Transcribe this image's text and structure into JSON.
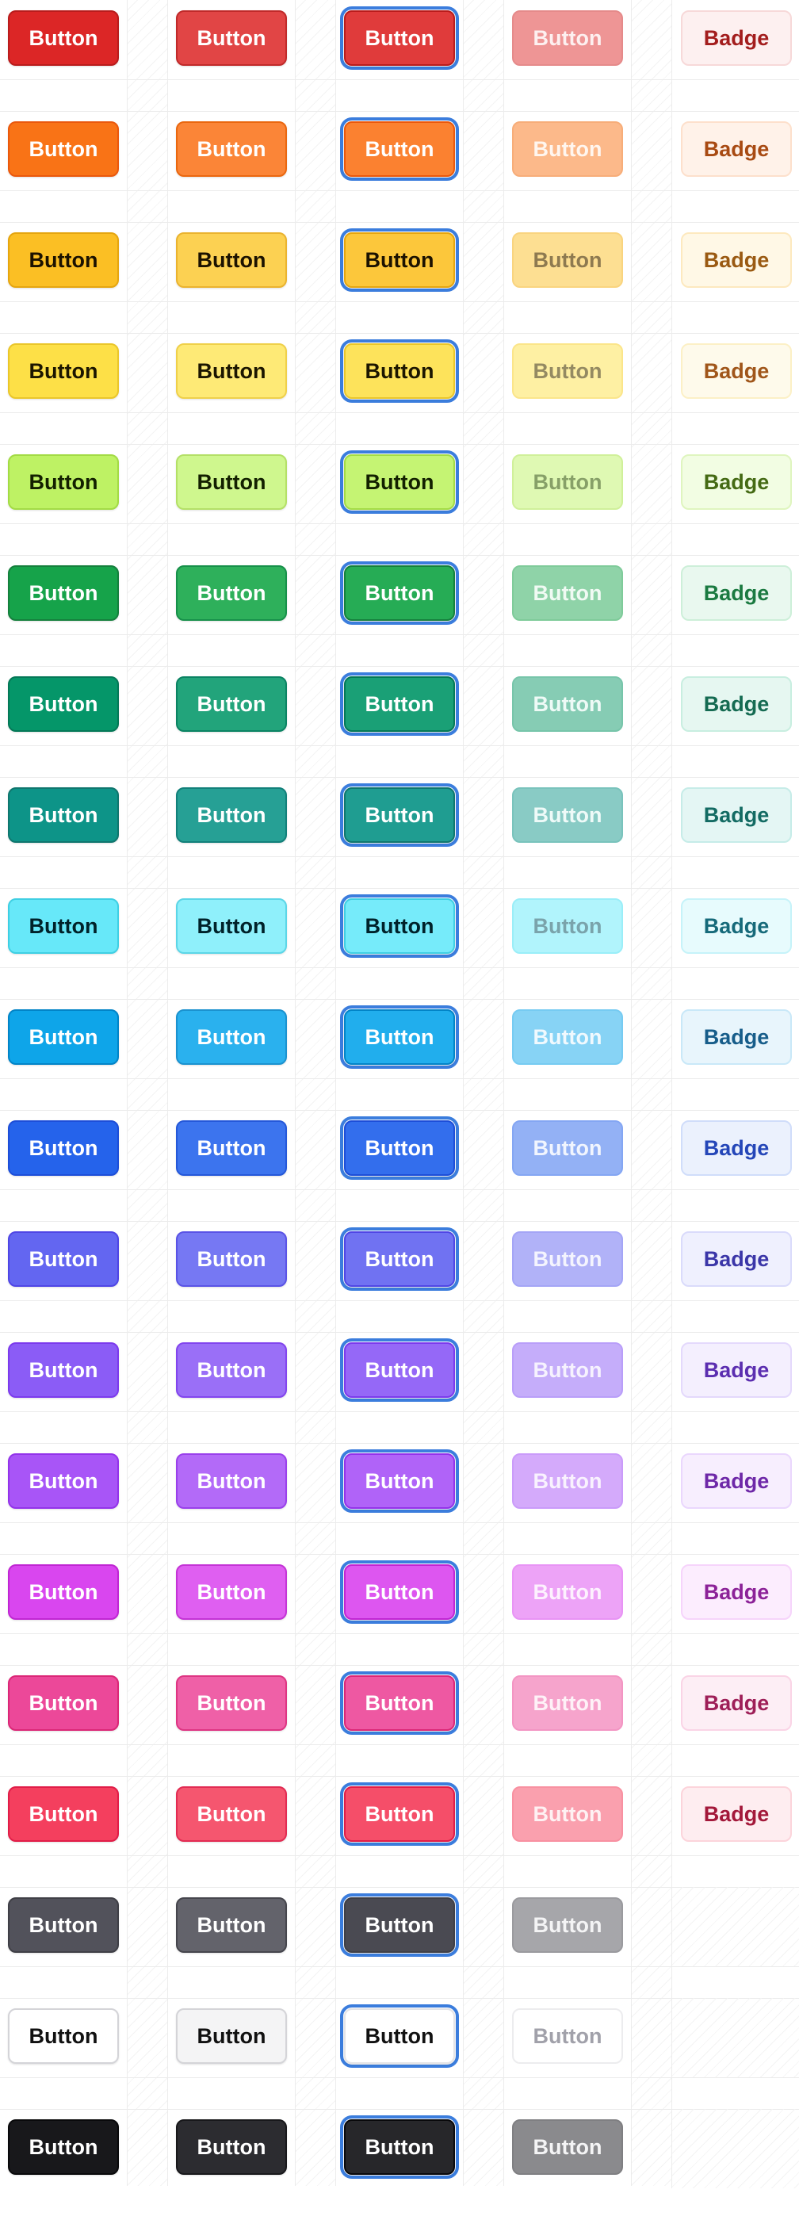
{
  "button_label": "Button",
  "badge_label": "Badge",
  "focus_ring_color": "#3b7ddd",
  "rows": [
    {
      "name": "red",
      "solid": {
        "bg": "#dc2626",
        "fg": "#ffffff",
        "border": "#b91c1c"
      },
      "hover": {
        "bg": "#e14545",
        "fg": "#ffffff",
        "border": "#c02a2a"
      },
      "focus": {
        "bg": "#e03b3b",
        "fg": "#ffffff",
        "border": "#b91c1c"
      },
      "disabled": {
        "bg": "#ee9595",
        "fg": "#fdf0f0",
        "border": "#e58a8a"
      },
      "badge": {
        "bg": "#fdf0f0",
        "fg": "#a31d1d",
        "border": "#f7d9d9"
      }
    },
    {
      "name": "orange",
      "solid": {
        "bg": "#f97316",
        "fg": "#ffffff",
        "border": "#ea580c"
      },
      "hover": {
        "bg": "#fb8537",
        "fg": "#ffffff",
        "border": "#ea670f"
      },
      "focus": {
        "bg": "#fb8130",
        "fg": "#ffffff",
        "border": "#ea580c"
      },
      "disabled": {
        "bg": "#fcb98a",
        "fg": "#fff6ef",
        "border": "#f7ad79"
      },
      "badge": {
        "bg": "#fff2e9",
        "fg": "#a84a12",
        "border": "#fde0cc"
      }
    },
    {
      "name": "amber",
      "solid": {
        "bg": "#fbbf24",
        "fg": "#1c1200",
        "border": "#e5a50f"
      },
      "hover": {
        "bg": "#fcd152",
        "fg": "#1c1200",
        "border": "#eab32f"
      },
      "focus": {
        "bg": "#fcc73b",
        "fg": "#1c1200",
        "border": "#e5a50f"
      },
      "disabled": {
        "bg": "#fddf92",
        "fg": "#8e7a50",
        "border": "#f9d47f"
      },
      "badge": {
        "bg": "#fff8e6",
        "fg": "#9a5a12",
        "border": "#fde9bf"
      }
    },
    {
      "name": "yellow",
      "solid": {
        "bg": "#fde047",
        "fg": "#1c1600",
        "border": "#eac62a"
      },
      "hover": {
        "bg": "#feea76",
        "fg": "#1c1600",
        "border": "#efd04a"
      },
      "focus": {
        "bg": "#fde35b",
        "fg": "#1c1600",
        "border": "#eac62a"
      },
      "disabled": {
        "bg": "#fef0a3",
        "fg": "#948a62",
        "border": "#fbe58a"
      },
      "badge": {
        "bg": "#fefaeb",
        "fg": "#a0561a",
        "border": "#fcf0c6"
      }
    },
    {
      "name": "lime",
      "solid": {
        "bg": "#bef264",
        "fg": "#132000",
        "border": "#a3db45"
      },
      "hover": {
        "bg": "#cff78e",
        "fg": "#132000",
        "border": "#b4e067"
      },
      "focus": {
        "bg": "#c5f473",
        "fg": "#132000",
        "border": "#a3db45"
      },
      "disabled": {
        "bg": "#dff9b3",
        "fg": "#87a068",
        "border": "#d0f09a"
      },
      "badge": {
        "bg": "#f2fde3",
        "fg": "#456a14",
        "border": "#dff5bf"
      }
    },
    {
      "name": "green",
      "solid": {
        "bg": "#16a34a",
        "fg": "#ffffff",
        "border": "#15803d"
      },
      "hover": {
        "bg": "#2eb05b",
        "fg": "#ffffff",
        "border": "#17904a"
      },
      "focus": {
        "bg": "#26ac55",
        "fg": "#ffffff",
        "border": "#15803d"
      },
      "disabled": {
        "bg": "#8fd3a8",
        "fg": "#f0faf3",
        "border": "#7fcb9a"
      },
      "badge": {
        "bg": "#e9f8ef",
        "fg": "#1b7a41",
        "border": "#cdefd9"
      }
    },
    {
      "name": "emerald",
      "solid": {
        "bg": "#059669",
        "fg": "#ffffff",
        "border": "#047857"
      },
      "hover": {
        "bg": "#22a47b",
        "fg": "#ffffff",
        "border": "#0b8363"
      },
      "focus": {
        "bg": "#1aa076",
        "fg": "#ffffff",
        "border": "#047857"
      },
      "disabled": {
        "bg": "#86ccb4",
        "fg": "#eefaf6",
        "border": "#77c5aa"
      },
      "badge": {
        "bg": "#e6f7f1",
        "fg": "#156b52",
        "border": "#c8eee0"
      }
    },
    {
      "name": "teal",
      "solid": {
        "bg": "#0d9488",
        "fg": "#ffffff",
        "border": "#0f766e"
      },
      "hover": {
        "bg": "#26a095",
        "fg": "#ffffff",
        "border": "#12807a"
      },
      "focus": {
        "bg": "#1f9d91",
        "fg": "#ffffff",
        "border": "#0f766e"
      },
      "disabled": {
        "bg": "#89cbc5",
        "fg": "#eefaf8",
        "border": "#79c3bc"
      },
      "badge": {
        "bg": "#e4f6f4",
        "fg": "#136b63",
        "border": "#c6ece8"
      }
    },
    {
      "name": "cyan",
      "solid": {
        "bg": "#67e8f9",
        "fg": "#00222a",
        "border": "#3fcfe3"
      },
      "hover": {
        "bg": "#8ff0fb",
        "fg": "#00222a",
        "border": "#5cd6e7"
      },
      "focus": {
        "bg": "#76ebfa",
        "fg": "#00222a",
        "border": "#3fcfe3"
      },
      "disabled": {
        "bg": "#b1f4fc",
        "fg": "#7aa3ab",
        "border": "#9aeef8"
      },
      "badge": {
        "bg": "#e7fbfd",
        "fg": "#166a7a",
        "border": "#c6f3f9"
      }
    },
    {
      "name": "sky",
      "solid": {
        "bg": "#0ea5e9",
        "fg": "#ffffff",
        "border": "#0284c7"
      },
      "hover": {
        "bg": "#2ab1ee",
        "fg": "#ffffff",
        "border": "#1b92cf"
      },
      "focus": {
        "bg": "#21aeed",
        "fg": "#ffffff",
        "border": "#0284c7"
      },
      "disabled": {
        "bg": "#87d3f5",
        "fg": "#f0f9fe",
        "border": "#76cbf2"
      },
      "badge": {
        "bg": "#e8f5fc",
        "fg": "#175d8a",
        "border": "#c9e8f8"
      }
    },
    {
      "name": "blue",
      "solid": {
        "bg": "#2563eb",
        "fg": "#ffffff",
        "border": "#1d4ed8"
      },
      "hover": {
        "bg": "#3c74ee",
        "fg": "#ffffff",
        "border": "#2558d9"
      },
      "focus": {
        "bg": "#336eed",
        "fg": "#ffffff",
        "border": "#1d4ed8"
      },
      "disabled": {
        "bg": "#93b1f5",
        "fg": "#f1f5fe",
        "border": "#84a6f3"
      },
      "badge": {
        "bg": "#ebf1fd",
        "fg": "#2446b8",
        "border": "#d0ddfa"
      }
    },
    {
      "name": "indigo",
      "solid": {
        "bg": "#6366f1",
        "fg": "#ffffff",
        "border": "#4f46e5"
      },
      "hover": {
        "bg": "#7678f3",
        "fg": "#ffffff",
        "border": "#5a53e6"
      },
      "focus": {
        "bg": "#7072f2",
        "fg": "#ffffff",
        "border": "#4f46e5"
      },
      "disabled": {
        "bg": "#b1b2f8",
        "fg": "#f4f4fe",
        "border": "#a4a5f6"
      },
      "badge": {
        "bg": "#eff0fe",
        "fg": "#3b36a8",
        "border": "#dadbfb"
      }
    },
    {
      "name": "violet",
      "solid": {
        "bg": "#8b5cf6",
        "fg": "#ffffff",
        "border": "#7c3aed"
      },
      "hover": {
        "bg": "#9a6ff7",
        "fg": "#ffffff",
        "border": "#8245ee"
      },
      "focus": {
        "bg": "#9568f7",
        "fg": "#ffffff",
        "border": "#7c3aed"
      },
      "disabled": {
        "bg": "#c5adfa",
        "fg": "#f6f2fe",
        "border": "#b99ef9"
      },
      "badge": {
        "bg": "#f4effe",
        "fg": "#5b2eb0",
        "border": "#e4d9fc"
      }
    },
    {
      "name": "purple",
      "solid": {
        "bg": "#a855f7",
        "fg": "#ffffff",
        "border": "#9333ea"
      },
      "hover": {
        "bg": "#b36af8",
        "fg": "#ffffff",
        "border": "#9a40eb"
      },
      "focus": {
        "bg": "#b063f8",
        "fg": "#ffffff",
        "border": "#9333ea"
      },
      "disabled": {
        "bg": "#d4aafb",
        "fg": "#f9f2fe",
        "border": "#ca9bfa"
      },
      "badge": {
        "bg": "#f7eefe",
        "fg": "#6e28a8",
        "border": "#ead7fd"
      }
    },
    {
      "name": "fuchsia",
      "solid": {
        "bg": "#d946ef",
        "fg": "#ffffff",
        "border": "#c026d3"
      },
      "hover": {
        "bg": "#df5ff1",
        "fg": "#ffffff",
        "border": "#c434d6"
      },
      "focus": {
        "bg": "#dd56f0",
        "fg": "#ffffff",
        "border": "#c026d3"
      },
      "disabled": {
        "bg": "#eda3f7",
        "fg": "#fdf1fe",
        "border": "#e894f5"
      },
      "badge": {
        "bg": "#fcedfe",
        "fg": "#8c2298",
        "border": "#f6d4fb"
      }
    },
    {
      "name": "pink",
      "solid": {
        "bg": "#ec4899",
        "fg": "#ffffff",
        "border": "#db2777"
      },
      "hover": {
        "bg": "#ef60a7",
        "fg": "#ffffff",
        "border": "#de3583"
      },
      "focus": {
        "bg": "#ee58a2",
        "fg": "#ffffff",
        "border": "#db2777"
      },
      "disabled": {
        "bg": "#f6a4cc",
        "fg": "#fef1f7",
        "border": "#f395c3"
      },
      "badge": {
        "bg": "#fdeef5",
        "fg": "#9e1f58",
        "border": "#fad4e6"
      }
    },
    {
      "name": "rose",
      "solid": {
        "bg": "#f43f5e",
        "fg": "#ffffff",
        "border": "#e11d48"
      },
      "hover": {
        "bg": "#f5566f",
        "fg": "#ffffff",
        "border": "#e22c53"
      },
      "focus": {
        "bg": "#f54e69",
        "fg": "#ffffff",
        "border": "#e11d48"
      },
      "disabled": {
        "bg": "#faa0ae",
        "fg": "#fef1f3",
        "border": "#f891a1"
      },
      "badge": {
        "bg": "#feedf0",
        "fg": "#a3183a",
        "border": "#fcd4db"
      }
    },
    {
      "name": "gray",
      "solid": {
        "bg": "#52525b",
        "fg": "#ffffff",
        "border": "#3f3f46"
      },
      "hover": {
        "bg": "#63636b",
        "fg": "#ffffff",
        "border": "#46464d"
      },
      "focus": {
        "bg": "#4a4a52",
        "fg": "#ffffff",
        "border": "#3f3f46"
      },
      "disabled": {
        "bg": "#a6a6aa",
        "fg": "#f4f4f5",
        "border": "#9a9a9e"
      },
      "badge": null
    },
    {
      "name": "white",
      "solid": {
        "bg": "#ffffff",
        "fg": "#111111",
        "border": "#d4d4d8"
      },
      "hover": {
        "bg": "#f4f4f5",
        "fg": "#111111",
        "border": "#d4d4d8"
      },
      "focus": {
        "bg": "#ffffff",
        "fg": "#111111",
        "border": "#e4e4e7"
      },
      "disabled": {
        "bg": "#ffffff",
        "fg": "#a1a1aa",
        "border": "#ececee"
      },
      "badge": null
    },
    {
      "name": "black",
      "solid": {
        "bg": "#18181b",
        "fg": "#ffffff",
        "border": "#09090b"
      },
      "hover": {
        "bg": "#2c2c30",
        "fg": "#ffffff",
        "border": "#18181b"
      },
      "focus": {
        "bg": "#27272a",
        "fg": "#ffffff",
        "border": "#09090b"
      },
      "disabled": {
        "bg": "#8a8a8d",
        "fg": "#f4f4f5",
        "border": "#7f7f82"
      },
      "badge": null
    }
  ]
}
